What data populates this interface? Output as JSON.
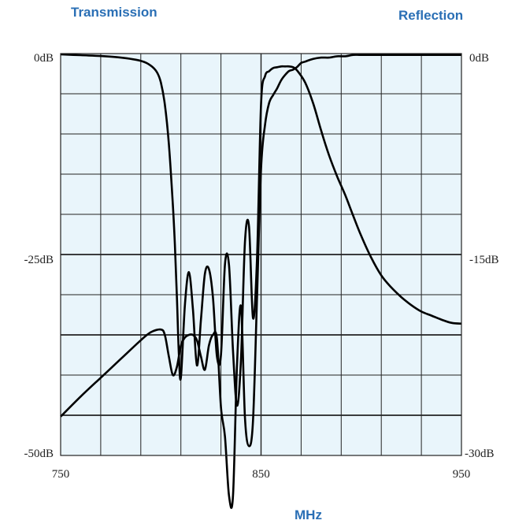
{
  "labels": {
    "left_series": "Transmission",
    "right_series": "Reflection",
    "x_unit": "MHz"
  },
  "colors": {
    "plot_background": "#e9f5fb",
    "grid": "#222222",
    "curve": "#000000",
    "label_blue": "#2a6fb5"
  },
  "chart_data": {
    "type": "line",
    "title": "",
    "xlabel": "MHz",
    "xlim": [
      750,
      950
    ],
    "x_ticks": [
      "750",
      "850",
      "950"
    ],
    "left_axis": {
      "ylim": [
        -50,
        0
      ],
      "tick_labels": {
        "top": "0dB",
        "mid": "-25dB",
        "bottom": "-50dB"
      }
    },
    "right_axis": {
      "ylim": [
        -30,
        0
      ],
      "tick_labels": {
        "top": "0dB",
        "mid": "-15dB",
        "bottom": "-30dB"
      }
    },
    "grid": true,
    "series": [
      {
        "axis": "left",
        "x": [
          750,
          760,
          770,
          780,
          790,
          795,
          798,
          800,
          802,
          804,
          806,
          807,
          808,
          809,
          810,
          812,
          814,
          816,
          818,
          820,
          822,
          824,
          826,
          828,
          830,
          832,
          834,
          836,
          838,
          840,
          842,
          844,
          846,
          848,
          850,
          852,
          854,
          856,
          858,
          860,
          862,
          864,
          866,
          868,
          872,
          876,
          880,
          884,
          888,
          892,
          896,
          900,
          905,
          910,
          915,
          920,
          925,
          930,
          935,
          940,
          945,
          950
        ],
        "y": [
          -0.1,
          -0.2,
          -0.3,
          -0.5,
          -0.9,
          -1.5,
          -2.3,
          -3.6,
          -6.3,
          -11.2,
          -18.8,
          -23.8,
          -30.2,
          -37.5,
          -40.3,
          -31.3,
          -27.2,
          -31.8,
          -38.8,
          -33.2,
          -27.4,
          -26.8,
          -30.3,
          -37.7,
          -37.5,
          -26.2,
          -26.3,
          -37.0,
          -43.8,
          -37.9,
          -23.4,
          -21.5,
          -32.9,
          -25.5,
          -6.3,
          -2.8,
          -2.2,
          -1.8,
          -1.7,
          -1.6,
          -1.6,
          -1.6,
          -1.7,
          -2.1,
          -3.6,
          -6.2,
          -9.6,
          -12.7,
          -15.3,
          -17.6,
          -20.2,
          -22.7,
          -25.4,
          -27.6,
          -29.1,
          -30.3,
          -31.3,
          -32.1,
          -32.6,
          -33.1,
          -33.5,
          -33.6
        ]
      },
      {
        "axis": "right",
        "x": [
          750,
          760,
          770,
          780,
          790,
          795,
          800,
          802,
          804,
          806,
          808,
          810,
          812,
          814,
          816,
          818,
          820,
          822,
          824,
          826,
          828,
          830,
          832,
          834,
          836,
          838,
          840,
          842,
          844,
          846,
          848,
          850,
          852,
          854,
          856,
          858,
          860,
          862,
          864,
          866,
          868,
          870,
          872,
          876,
          880,
          884,
          888,
          892,
          896,
          900,
          910,
          920,
          930,
          940,
          950
        ],
        "y": [
          -27.1,
          -25.6,
          -24.2,
          -22.8,
          -21.4,
          -20.8,
          -20.6,
          -21.0,
          -22.6,
          -24.0,
          -23.4,
          -21.8,
          -21.2,
          -21.0,
          -21.0,
          -21.4,
          -22.6,
          -23.6,
          -21.8,
          -21.0,
          -21.3,
          -26.4,
          -28.6,
          -33.0,
          -33.0,
          -23.2,
          -18.9,
          -27.2,
          -29.3,
          -27.4,
          -18.2,
          -8.6,
          -5.3,
          -3.7,
          -3.1,
          -2.6,
          -2.0,
          -1.6,
          -1.3,
          -1.2,
          -1.0,
          -0.7,
          -0.6,
          -0.4,
          -0.3,
          -0.3,
          -0.2,
          -0.2,
          -0.1,
          -0.1,
          -0.1,
          -0.1,
          -0.1,
          -0.1,
          -0.1
        ]
      }
    ]
  }
}
